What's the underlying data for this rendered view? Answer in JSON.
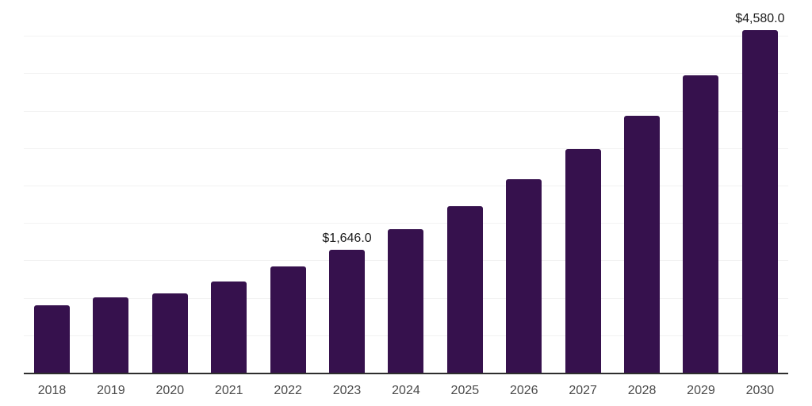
{
  "chart_style": {
    "bar_color": "#36114d",
    "axis_line_color": "#2e2e2e",
    "gridline_color": "#f2f2f2",
    "tick_label_color": "#4a4a4a",
    "data_label_color": "#1a1a1a",
    "background_color": "#ffffff"
  },
  "chart_data": {
    "type": "bar",
    "title": "",
    "xlabel": "",
    "ylabel": "",
    "categories": [
      "2018",
      "2019",
      "2020",
      "2021",
      "2022",
      "2023",
      "2024",
      "2025",
      "2026",
      "2027",
      "2028",
      "2029",
      "2030"
    ],
    "values": [
      900,
      1005,
      1060,
      1220,
      1420,
      1646,
      1915,
      2230,
      2580,
      2985,
      3435,
      3975,
      4580
    ],
    "data_labels": [
      {
        "category": "2023",
        "text": "$1,646.0"
      },
      {
        "category": "2030",
        "text": "$4,580.0"
      }
    ],
    "ylim": [
      0,
      5000
    ],
    "gridline_step": 500,
    "grid": true,
    "y_axis_labels_shown": false,
    "legend": "none"
  }
}
